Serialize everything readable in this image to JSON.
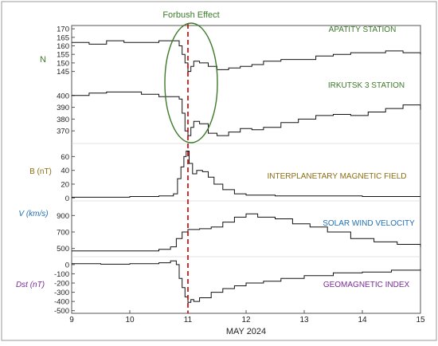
{
  "chart_data": {
    "type": "line",
    "title": "",
    "annotation": "Forbush Effect",
    "xlabel": "MAY 2024",
    "x_ticks": [
      "9",
      "10",
      "11",
      "12",
      "13",
      "14",
      "15"
    ],
    "xlim": [
      9,
      15
    ],
    "event_line_x": 11.0,
    "colors": {
      "frame": "#555555",
      "line": "#111111",
      "event_line": "#c00000",
      "ellipse": "#3d7a2a",
      "annotation": "#3d7a2a",
      "panel_label": "#3d7a2a",
      "neutron_label": "#3d7a2a",
      "imf_label": "#8b6e12",
      "v_label": "#1f6fb5",
      "dst_label": "#7a2a96"
    },
    "panels": [
      {
        "id": "neutron",
        "ylabel": "N",
        "series": [
          {
            "name": "APATITY STATION",
            "color": "#3d7a2a",
            "ylim": [
              142,
              171
            ],
            "y_ticks": [
              145,
              150,
              155,
              160,
              165,
              170
            ],
            "x": [
              9.0,
              9.3,
              9.6,
              9.9,
              10.2,
              10.5,
              10.75,
              10.85,
              10.9,
              10.95,
              11.0,
              11.05,
              11.1,
              11.2,
              11.35,
              11.5,
              11.7,
              11.9,
              12.1,
              12.3,
              12.6,
              12.9,
              13.2,
              13.5,
              13.8,
              14.1,
              14.4,
              14.7,
              15.0
            ],
            "values": [
              162,
              161,
              163,
              162,
              162,
              163,
              163,
              160,
              155,
              150,
              145,
              148,
              151,
              150,
              148,
              146,
              147,
              148,
              149,
              151,
              152,
              152,
              154,
              155,
              156,
              156,
              157,
              156,
              155
            ]
          },
          {
            "name": "IRKUTSK 3 STATION",
            "color": "#3d7a2a",
            "ylim": [
              362,
              410
            ],
            "y_ticks": [
              370,
              380,
              390,
              400
            ],
            "x": [
              9.0,
              9.3,
              9.6,
              9.9,
              10.2,
              10.5,
              10.75,
              10.85,
              10.9,
              10.95,
              11.0,
              11.05,
              11.1,
              11.2,
              11.35,
              11.5,
              11.7,
              11.9,
              12.1,
              12.3,
              12.6,
              12.9,
              13.2,
              13.5,
              13.8,
              14.1,
              14.4,
              14.7,
              15.0
            ],
            "values": [
              400,
              402,
              403,
              403,
              401,
              399,
              399,
              397,
              385,
              370,
              366,
              373,
              378,
              376,
              368,
              366,
              369,
              372,
              371,
              373,
              377,
              380,
              383,
              384,
              383,
              386,
              389,
              392,
              388
            ]
          }
        ]
      },
      {
        "id": "imf",
        "ylabel": "B (nT)",
        "series": [
          {
            "name": "INTERPLANETARY MAGNETIC FIELD",
            "color": "#8b6e12",
            "ylim": [
              -2,
              72
            ],
            "y_ticks": [
              0,
              20,
              40,
              60
            ],
            "x": [
              9.0,
              9.5,
              10.0,
              10.5,
              10.75,
              10.82,
              10.88,
              10.93,
              10.97,
              11.02,
              11.08,
              11.15,
              11.25,
              11.35,
              11.45,
              11.6,
              11.8,
              12.0,
              12.5,
              13.0,
              13.5,
              14.0,
              14.5,
              15.0
            ],
            "values": [
              1,
              1,
              2,
              3,
              6,
              28,
              45,
              60,
              68,
              50,
              35,
              40,
              38,
              30,
              20,
              12,
              6,
              4,
              3,
              3,
              3,
              2,
              2,
              2
            ]
          }
        ]
      },
      {
        "id": "velocity",
        "ylabel": "V (km/s)",
        "series": [
          {
            "name": "SOLAR WIND VELOCITY",
            "color": "#1f6fb5",
            "ylim": [
              400,
              1000
            ],
            "y_ticks": [
              500,
              700,
              900
            ],
            "x": [
              9.0,
              9.5,
              10.0,
              10.5,
              10.7,
              10.8,
              10.9,
              11.0,
              11.2,
              11.4,
              11.6,
              11.8,
              12.0,
              12.2,
              12.5,
              12.8,
              13.1,
              13.4,
              13.8,
              14.2,
              14.6,
              15.0
            ],
            "values": [
              470,
              470,
              470,
              490,
              520,
              620,
              700,
              730,
              740,
              760,
              820,
              880,
              920,
              880,
              860,
              800,
              760,
              700,
              620,
              580,
              550,
              520
            ]
          }
        ]
      },
      {
        "id": "dst",
        "ylabel": "Dst (nT)",
        "series": [
          {
            "name": "GEOMAGNETIC INDEX",
            "color": "#7a2a96",
            "ylim": [
              -520,
              60
            ],
            "y_ticks": [
              0,
              -100,
              -200,
              -300,
              -400,
              -500
            ],
            "x": [
              9.0,
              9.5,
              10.0,
              10.5,
              10.7,
              10.8,
              10.85,
              10.9,
              10.95,
              11.0,
              11.05,
              11.1,
              11.2,
              11.4,
              11.6,
              11.8,
              12.0,
              12.3,
              12.6,
              13.0,
              13.5,
              14.0,
              14.5,
              15.0
            ],
            "values": [
              10,
              5,
              10,
              20,
              40,
              0,
              -150,
              -250,
              -350,
              -410,
              -380,
              -400,
              -360,
              -300,
              -260,
              -230,
              -200,
              -180,
              -150,
              -120,
              -90,
              -80,
              -60,
              -50
            ]
          }
        ]
      }
    ]
  }
}
